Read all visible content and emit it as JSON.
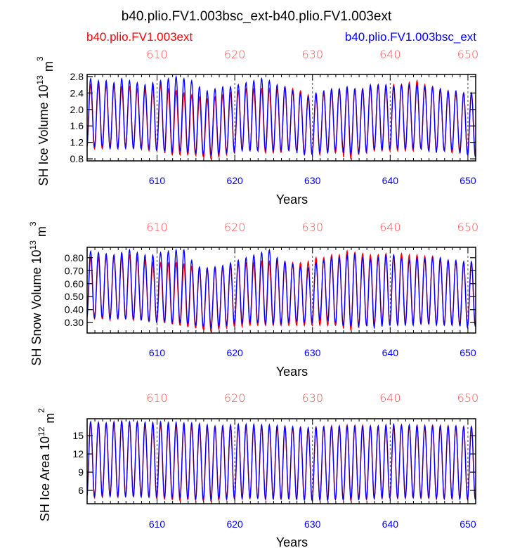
{
  "figure": {
    "title": "b40.plio.FV1.003bsc_ext-b40.plio.FV1.003ext",
    "legend_left": "b40.plio.FV1.003ext",
    "legend_right": "b40.plio.FV1.003bsc_ext",
    "colors": {
      "series_a": "#ff0000",
      "series_b": "#0000ff",
      "top_axis": "#ff5050",
      "axis": "#000000"
    }
  },
  "chart_data": [
    {
      "type": "line",
      "id": "ice-volume",
      "ylabel_main": "SH Ice Volume 10",
      "ylabel_exp": "13",
      "ylabel_unit": " m",
      "ylabel_unit_exp": "3",
      "xlabel": "Years",
      "xlim": [
        601,
        651
      ],
      "ylim": [
        0.75,
        2.85
      ],
      "yticks": [
        0.8,
        1.2,
        1.6,
        2.0,
        2.4,
        2.8
      ],
      "ytick_labels": [
        "0.8",
        "1.2",
        "1.6",
        "2.0",
        "2.4",
        "2.8"
      ],
      "xticks": [
        610,
        620,
        630,
        640,
        650
      ],
      "xtick_labels": [
        "610",
        "620",
        "630",
        "640",
        "650"
      ],
      "top_tick_labels": [
        "610",
        "620",
        "630",
        "640",
        "650"
      ],
      "series": [
        {
          "name": "b40.plio.FV1.003ext",
          "color": "#ff0000",
          "annual_max": [
            2.6,
            2.6,
            2.6,
            2.6,
            2.55,
            2.55,
            2.5,
            2.5,
            2.55,
            2.6,
            2.5,
            2.45,
            2.4,
            2.35,
            2.3,
            2.25,
            2.3,
            2.35,
            2.4,
            2.45,
            2.5,
            2.5,
            2.5,
            2.5,
            2.5,
            2.55,
            2.5,
            2.45,
            2.35,
            2.35,
            2.4,
            2.45,
            2.5,
            2.5,
            2.5,
            2.5,
            2.55,
            2.6,
            2.55,
            2.6,
            2.6,
            2.65,
            2.7,
            2.6,
            2.55,
            2.5,
            2.45,
            2.4,
            2.4,
            2.4
          ],
          "annual_min": [
            1.05,
            1.05,
            1.05,
            1.05,
            1.1,
            1.1,
            1.05,
            1.0,
            1.0,
            1.0,
            0.9,
            0.9,
            0.9,
            0.9,
            0.85,
            0.8,
            0.85,
            0.9,
            0.95,
            1.0,
            1.0,
            1.0,
            0.95,
            0.95,
            0.95,
            1.0,
            1.0,
            0.95,
            0.9,
            0.9,
            0.95,
            0.95,
            0.95,
            0.8,
            0.9,
            0.95,
            1.0,
            1.0,
            1.0,
            1.0,
            1.0,
            1.0,
            1.05,
            1.0,
            1.0,
            1.0,
            0.95,
            0.95,
            0.95,
            0.95
          ]
        },
        {
          "name": "b40.plio.FV1.003bsc_ext",
          "color": "#0000ff",
          "annual_max": [
            2.75,
            2.7,
            2.7,
            2.65,
            2.75,
            2.7,
            2.65,
            2.6,
            2.65,
            2.7,
            2.75,
            2.8,
            2.75,
            2.7,
            2.55,
            2.45,
            2.5,
            2.55,
            2.55,
            2.6,
            2.65,
            2.7,
            2.75,
            2.7,
            2.6,
            2.55,
            2.45,
            2.4,
            2.3,
            2.4,
            2.45,
            2.5,
            2.5,
            2.55,
            2.5,
            2.5,
            2.6,
            2.6,
            2.6,
            2.55,
            2.6,
            2.6,
            2.6,
            2.55,
            2.55,
            2.5,
            2.45,
            2.45,
            2.4,
            2.4
          ],
          "annual_min": [
            1.1,
            1.1,
            1.05,
            1.05,
            1.05,
            1.05,
            1.05,
            1.05,
            1.0,
            1.0,
            0.95,
            1.0,
            0.95,
            0.95,
            0.9,
            0.9,
            0.9,
            0.95,
            0.95,
            1.0,
            1.0,
            1.0,
            1.0,
            1.0,
            1.0,
            1.0,
            1.0,
            0.9,
            0.9,
            0.95,
            0.95,
            1.0,
            1.05,
            0.9,
            0.95,
            0.95,
            1.05,
            1.0,
            1.05,
            1.05,
            1.05,
            1.05,
            1.05,
            1.0,
            0.95,
            1.0,
            1.0,
            1.0,
            0.9,
            0.85
          ]
        }
      ]
    },
    {
      "type": "line",
      "id": "snow-volume",
      "ylabel_main": "SH Snow Volume 10",
      "ylabel_exp": "13",
      "ylabel_unit": " m",
      "ylabel_unit_exp": "3",
      "xlabel": "Years",
      "xlim": [
        601,
        651
      ],
      "ylim": [
        0.22,
        0.88
      ],
      "yticks": [
        0.3,
        0.4,
        0.5,
        0.6,
        0.7,
        0.8
      ],
      "ytick_labels": [
        "0.30",
        "0.40",
        "0.50",
        "0.60",
        "0.70",
        "0.80"
      ],
      "xticks": [
        610,
        620,
        630,
        640,
        650
      ],
      "xtick_labels": [
        "610",
        "620",
        "630",
        "640",
        "650"
      ],
      "top_tick_labels": [
        "610",
        "620",
        "630",
        "640",
        "650"
      ],
      "series": [
        {
          "name": "b40.plio.FV1.003ext",
          "color": "#ff0000",
          "annual_max": [
            0.8,
            0.8,
            0.81,
            0.82,
            0.81,
            0.82,
            0.8,
            0.78,
            0.76,
            0.76,
            0.76,
            0.76,
            0.75,
            0.73,
            0.72,
            0.72,
            0.72,
            0.73,
            0.74,
            0.76,
            0.76,
            0.76,
            0.77,
            0.77,
            0.78,
            0.77,
            0.76,
            0.76,
            0.77,
            0.8,
            0.8,
            0.82,
            0.82,
            0.85,
            0.84,
            0.83,
            0.82,
            0.82,
            0.83,
            0.82,
            0.83,
            0.82,
            0.82,
            0.81,
            0.81,
            0.79,
            0.78,
            0.77,
            0.76,
            0.76
          ],
          "annual_min": [
            0.33,
            0.33,
            0.32,
            0.33,
            0.33,
            0.32,
            0.32,
            0.31,
            0.31,
            0.3,
            0.29,
            0.28,
            0.27,
            0.26,
            0.25,
            0.23,
            0.25,
            0.26,
            0.27,
            0.27,
            0.28,
            0.28,
            0.28,
            0.28,
            0.28,
            0.28,
            0.28,
            0.28,
            0.28,
            0.28,
            0.28,
            0.28,
            0.27,
            0.24,
            0.26,
            0.28,
            0.28,
            0.29,
            0.29,
            0.29,
            0.29,
            0.29,
            0.29,
            0.29,
            0.29,
            0.29,
            0.28,
            0.28,
            0.28,
            0.28
          ]
        },
        {
          "name": "b40.plio.FV1.003bsc_ext",
          "color": "#0000ff",
          "annual_max": [
            0.85,
            0.84,
            0.83,
            0.82,
            0.84,
            0.86,
            0.84,
            0.82,
            0.82,
            0.84,
            0.85,
            0.86,
            0.86,
            0.78,
            0.73,
            0.72,
            0.73,
            0.74,
            0.76,
            0.78,
            0.8,
            0.82,
            0.84,
            0.86,
            0.8,
            0.77,
            0.75,
            0.73,
            0.72,
            0.76,
            0.78,
            0.8,
            0.8,
            0.82,
            0.83,
            0.8,
            0.79,
            0.8,
            0.82,
            0.82,
            0.8,
            0.78,
            0.8,
            0.79,
            0.8,
            0.8,
            0.78,
            0.78,
            0.77,
            0.77
          ],
          "annual_min": [
            0.34,
            0.34,
            0.33,
            0.33,
            0.33,
            0.33,
            0.32,
            0.31,
            0.3,
            0.31,
            0.3,
            0.3,
            0.29,
            0.28,
            0.27,
            0.26,
            0.27,
            0.28,
            0.29,
            0.3,
            0.3,
            0.3,
            0.29,
            0.29,
            0.29,
            0.3,
            0.31,
            0.3,
            0.3,
            0.32,
            0.33,
            0.3,
            0.28,
            0.27,
            0.27,
            0.28,
            0.26,
            0.27,
            0.28,
            0.28,
            0.28,
            0.28,
            0.29,
            0.29,
            0.28,
            0.28,
            0.28,
            0.28,
            0.26,
            0.27
          ]
        }
      ]
    },
    {
      "type": "line",
      "id": "ice-area",
      "ylabel_main": "SH Ice Area 10",
      "ylabel_exp": "12",
      "ylabel_unit": " m",
      "ylabel_unit_exp": "2",
      "xlabel": "Years",
      "xlim": [
        601,
        651
      ],
      "ylim": [
        3.8,
        17.8
      ],
      "yticks": [
        6,
        9,
        12,
        15
      ],
      "ytick_labels": [
        "6",
        "9",
        "12",
        "15"
      ],
      "xticks": [
        610,
        620,
        630,
        640,
        650
      ],
      "xtick_labels": [
        "610",
        "620",
        "630",
        "640",
        "650"
      ],
      "top_tick_labels": [
        "610",
        "620",
        "630",
        "640",
        "650"
      ],
      "series": [
        {
          "name": "b40.plio.FV1.003ext",
          "color": "#ff0000",
          "annual_max": [
            17.2,
            17.1,
            17.0,
            17.3,
            17.4,
            17.2,
            17.2,
            17.1,
            17.0,
            16.9,
            16.8,
            16.8,
            16.7,
            16.6,
            16.6,
            16.6,
            16.5,
            16.6,
            16.6,
            16.6,
            16.6,
            16.6,
            16.6,
            16.5,
            16.5,
            16.5,
            16.4,
            16.4,
            16.3,
            16.4,
            16.5,
            16.6,
            16.6,
            16.7,
            16.7,
            16.7,
            16.6,
            16.6,
            16.6,
            16.6,
            16.7,
            16.7,
            16.7,
            16.7,
            16.7,
            16.7,
            16.6,
            16.6,
            16.5,
            16.5
          ],
          "annual_min": [
            4.8,
            4.9,
            5.0,
            4.9,
            4.9,
            5.0,
            5.0,
            4.9,
            4.7,
            4.6,
            4.5,
            4.3,
            4.5,
            4.4,
            4.3,
            4.2,
            4.4,
            4.5,
            4.6,
            4.6,
            4.7,
            4.7,
            4.5,
            4.6,
            4.6,
            4.6,
            4.6,
            4.5,
            4.4,
            4.4,
            4.4,
            4.5,
            4.4,
            4.3,
            4.4,
            4.5,
            4.6,
            4.7,
            4.7,
            4.7,
            4.7,
            4.8,
            4.7,
            4.7,
            4.6,
            4.6,
            4.6,
            4.6,
            4.5,
            4.6
          ]
        },
        {
          "name": "b40.plio.FV1.003bsc_ext",
          "color": "#0000ff",
          "annual_max": [
            17.3,
            17.2,
            17.1,
            17.2,
            17.4,
            17.3,
            17.3,
            17.2,
            17.2,
            17.3,
            17.2,
            17.2,
            17.1,
            17.1,
            17.0,
            16.8,
            16.6,
            16.7,
            16.8,
            16.9,
            16.9,
            16.9,
            16.8,
            16.8,
            16.7,
            16.6,
            16.5,
            16.4,
            16.3,
            16.4,
            16.5,
            16.5,
            16.6,
            16.6,
            16.6,
            16.6,
            16.6,
            16.6,
            16.8,
            16.9,
            16.8,
            16.8,
            16.7,
            16.6,
            16.6,
            16.6,
            16.6,
            16.6,
            16.5,
            16.5
          ],
          "annual_min": [
            5.0,
            5.0,
            5.0,
            5.0,
            5.0,
            5.0,
            4.9,
            4.9,
            4.9,
            4.9,
            4.8,
            4.8,
            4.7,
            4.6,
            4.5,
            4.5,
            4.6,
            4.6,
            4.7,
            4.7,
            4.7,
            4.7,
            4.6,
            4.6,
            4.6,
            4.6,
            4.5,
            4.4,
            4.3,
            4.4,
            4.4,
            4.5,
            4.5,
            4.5,
            4.6,
            4.6,
            4.7,
            4.7,
            4.8,
            4.8,
            4.8,
            4.8,
            4.8,
            4.8,
            4.7,
            4.7,
            4.7,
            4.6,
            4.6,
            4.5
          ]
        }
      ]
    }
  ]
}
